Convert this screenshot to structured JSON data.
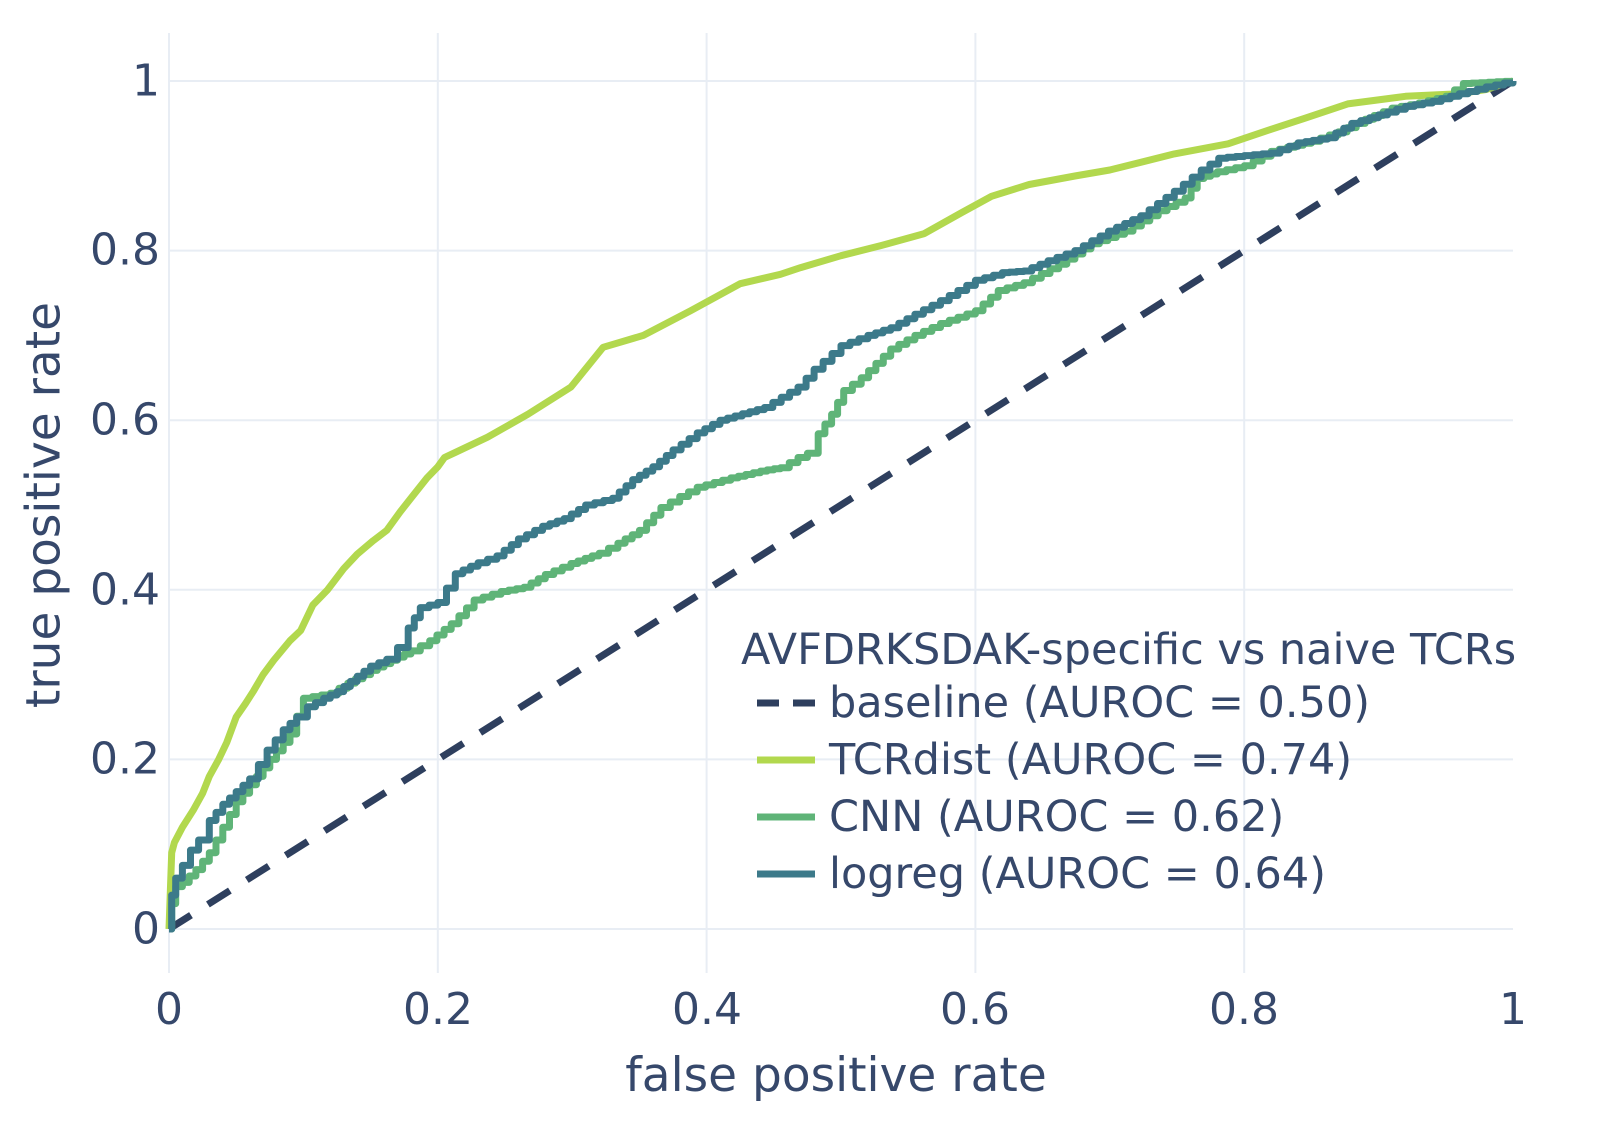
{
  "figure": {
    "x_axis": {
      "label": "false positive rate",
      "ticks": [
        "0",
        "0.2",
        "0.4",
        "0.6",
        "0.8",
        "1"
      ]
    },
    "y_axis": {
      "label": "true positive rate",
      "ticks": [
        "0",
        "0.2",
        "0.4",
        "0.6",
        "0.8",
        "1"
      ]
    },
    "colors": {
      "grid": "#e8edf4",
      "text": "#36486b",
      "background": "#ffffff"
    }
  },
  "chart_data": {
    "type": "line",
    "title": "AVFDRKSDAK-specific vs naive TCRs",
    "xlabel": "false positive rate",
    "ylabel": "true positive rate",
    "xlim": [
      0,
      1
    ],
    "ylim": [
      0,
      1
    ],
    "grid": true,
    "legend_position": "inside lower right",
    "series": [
      {
        "name": "baseline",
        "label": "baseline (AUROC = 0.50)",
        "auroc": 0.5,
        "color": "#2e3f5e",
        "style": "dashed",
        "points": [
          [
            0,
            0
          ],
          [
            1,
            1
          ]
        ]
      },
      {
        "name": "TCRdist",
        "label": "TCRdist (AUROC = 0.74)",
        "auroc": 0.74,
        "color": "#b2d84e",
        "style": "smooth",
        "points": [
          [
            0,
            0
          ],
          [
            0.002,
            0.09
          ],
          [
            0.004,
            0.102
          ],
          [
            0.01,
            0.12
          ],
          [
            0.018,
            0.14
          ],
          [
            0.025,
            0.16
          ],
          [
            0.03,
            0.18
          ],
          [
            0.037,
            0.2
          ],
          [
            0.043,
            0.22
          ],
          [
            0.05,
            0.25
          ],
          [
            0.057,
            0.266
          ],
          [
            0.063,
            0.281
          ],
          [
            0.07,
            0.3
          ],
          [
            0.078,
            0.317
          ],
          [
            0.09,
            0.34
          ],
          [
            0.098,
            0.352
          ],
          [
            0.107,
            0.382
          ],
          [
            0.118,
            0.4
          ],
          [
            0.13,
            0.425
          ],
          [
            0.14,
            0.442
          ],
          [
            0.152,
            0.458
          ],
          [
            0.162,
            0.47
          ],
          [
            0.172,
            0.492
          ],
          [
            0.182,
            0.512
          ],
          [
            0.192,
            0.532
          ],
          [
            0.2,
            0.545
          ],
          [
            0.205,
            0.556
          ],
          [
            0.213,
            0.562
          ],
          [
            0.237,
            0.58
          ],
          [
            0.267,
            0.607
          ],
          [
            0.299,
            0.639
          ],
          [
            0.323,
            0.686
          ],
          [
            0.353,
            0.7
          ],
          [
            0.388,
            0.729
          ],
          [
            0.425,
            0.761
          ],
          [
            0.455,
            0.772
          ],
          [
            0.47,
            0.78
          ],
          [
            0.5,
            0.794
          ],
          [
            0.53,
            0.806
          ],
          [
            0.562,
            0.82
          ],
          [
            0.59,
            0.845
          ],
          [
            0.612,
            0.864
          ],
          [
            0.64,
            0.878
          ],
          [
            0.674,
            0.888
          ],
          [
            0.7,
            0.895
          ],
          [
            0.748,
            0.914
          ],
          [
            0.788,
            0.926
          ],
          [
            0.82,
            0.943
          ],
          [
            0.845,
            0.956
          ],
          [
            0.877,
            0.973
          ],
          [
            0.92,
            0.982
          ],
          [
            0.96,
            0.985
          ],
          [
            0.98,
            0.99
          ],
          [
            1,
            1
          ]
        ]
      },
      {
        "name": "CNN",
        "label": "CNN (AUROC = 0.62)",
        "auroc": 0.62,
        "color": "#5fb478",
        "style": "step",
        "points": [
          [
            0,
            0
          ],
          [
            0.002,
            0.03
          ],
          [
            0.005,
            0.05
          ],
          [
            0.01,
            0.055
          ],
          [
            0.02,
            0.07
          ],
          [
            0.03,
            0.09
          ],
          [
            0.04,
            0.12
          ],
          [
            0.05,
            0.15
          ],
          [
            0.06,
            0.17
          ],
          [
            0.07,
            0.19
          ],
          [
            0.08,
            0.21
          ],
          [
            0.09,
            0.23
          ],
          [
            0.1,
            0.272
          ],
          [
            0.12,
            0.278
          ],
          [
            0.133,
            0.29
          ],
          [
            0.15,
            0.305
          ],
          [
            0.165,
            0.317
          ],
          [
            0.18,
            0.328
          ],
          [
            0.194,
            0.34
          ],
          [
            0.21,
            0.36
          ],
          [
            0.227,
            0.388
          ],
          [
            0.247,
            0.398
          ],
          [
            0.264,
            0.403
          ],
          [
            0.28,
            0.418
          ],
          [
            0.299,
            0.431
          ],
          [
            0.32,
            0.443
          ],
          [
            0.334,
            0.455
          ],
          [
            0.35,
            0.47
          ],
          [
            0.366,
            0.497
          ],
          [
            0.38,
            0.51
          ],
          [
            0.393,
            0.521
          ],
          [
            0.418,
            0.532
          ],
          [
            0.44,
            0.54
          ],
          [
            0.455,
            0.544
          ],
          [
            0.468,
            0.556
          ],
          [
            0.475,
            0.561
          ],
          [
            0.483,
            0.584
          ],
          [
            0.493,
            0.607
          ],
          [
            0.502,
            0.635
          ],
          [
            0.515,
            0.65
          ],
          [
            0.537,
            0.684
          ],
          [
            0.555,
            0.7
          ],
          [
            0.574,
            0.714
          ],
          [
            0.6,
            0.729
          ],
          [
            0.617,
            0.753
          ],
          [
            0.636,
            0.762
          ],
          [
            0.662,
            0.784
          ],
          [
            0.686,
            0.808
          ],
          [
            0.711,
            0.823
          ],
          [
            0.736,
            0.847
          ],
          [
            0.756,
            0.862
          ],
          [
            0.765,
            0.885
          ],
          [
            0.78,
            0.893
          ],
          [
            0.8,
            0.9
          ],
          [
            0.82,
            0.917
          ],
          [
            0.85,
            0.929
          ],
          [
            0.87,
            0.94
          ],
          [
            0.89,
            0.955
          ],
          [
            0.91,
            0.968
          ],
          [
            0.93,
            0.974
          ],
          [
            0.95,
            0.982
          ],
          [
            0.963,
            0.997
          ],
          [
            1,
            1
          ]
        ]
      },
      {
        "name": "logreg",
        "label": "logreg (AUROC = 0.64)",
        "auroc": 0.64,
        "color": "#3c7a8a",
        "style": "step",
        "points": [
          [
            0,
            0
          ],
          [
            0.002,
            0.04
          ],
          [
            0.005,
            0.06
          ],
          [
            0.01,
            0.075
          ],
          [
            0.016,
            0.093
          ],
          [
            0.022,
            0.105
          ],
          [
            0.03,
            0.128
          ],
          [
            0.04,
            0.147
          ],
          [
            0.05,
            0.162
          ],
          [
            0.06,
            0.177
          ],
          [
            0.073,
            0.211
          ],
          [
            0.085,
            0.235
          ],
          [
            0.095,
            0.25
          ],
          [
            0.103,
            0.262
          ],
          [
            0.115,
            0.272
          ],
          [
            0.125,
            0.28
          ],
          [
            0.135,
            0.292
          ],
          [
            0.15,
            0.31
          ],
          [
            0.162,
            0.318
          ],
          [
            0.17,
            0.332
          ],
          [
            0.178,
            0.355
          ],
          [
            0.187,
            0.379
          ],
          [
            0.2,
            0.385
          ],
          [
            0.213,
            0.419
          ],
          [
            0.23,
            0.432
          ],
          [
            0.244,
            0.44
          ],
          [
            0.26,
            0.46
          ],
          [
            0.278,
            0.475
          ],
          [
            0.294,
            0.484
          ],
          [
            0.31,
            0.5
          ],
          [
            0.33,
            0.508
          ],
          [
            0.345,
            0.53
          ],
          [
            0.36,
            0.545
          ],
          [
            0.375,
            0.565
          ],
          [
            0.393,
            0.585
          ],
          [
            0.41,
            0.6
          ],
          [
            0.443,
            0.615
          ],
          [
            0.468,
            0.639
          ],
          [
            0.48,
            0.66
          ],
          [
            0.5,
            0.688
          ],
          [
            0.52,
            0.7
          ],
          [
            0.537,
            0.709
          ],
          [
            0.555,
            0.725
          ],
          [
            0.574,
            0.741
          ],
          [
            0.6,
            0.765
          ],
          [
            0.62,
            0.774
          ],
          [
            0.636,
            0.776
          ],
          [
            0.654,
            0.788
          ],
          [
            0.674,
            0.8
          ],
          [
            0.699,
            0.823
          ],
          [
            0.723,
            0.841
          ],
          [
            0.748,
            0.87
          ],
          [
            0.768,
            0.895
          ],
          [
            0.781,
            0.909
          ],
          [
            0.8,
            0.912
          ],
          [
            0.82,
            0.915
          ],
          [
            0.84,
            0.927
          ],
          [
            0.862,
            0.933
          ],
          [
            0.88,
            0.95
          ],
          [
            0.9,
            0.96
          ],
          [
            0.92,
            0.97
          ],
          [
            0.94,
            0.976
          ],
          [
            0.96,
            0.985
          ],
          [
            0.98,
            0.993
          ],
          [
            1,
            1
          ]
        ]
      }
    ]
  }
}
